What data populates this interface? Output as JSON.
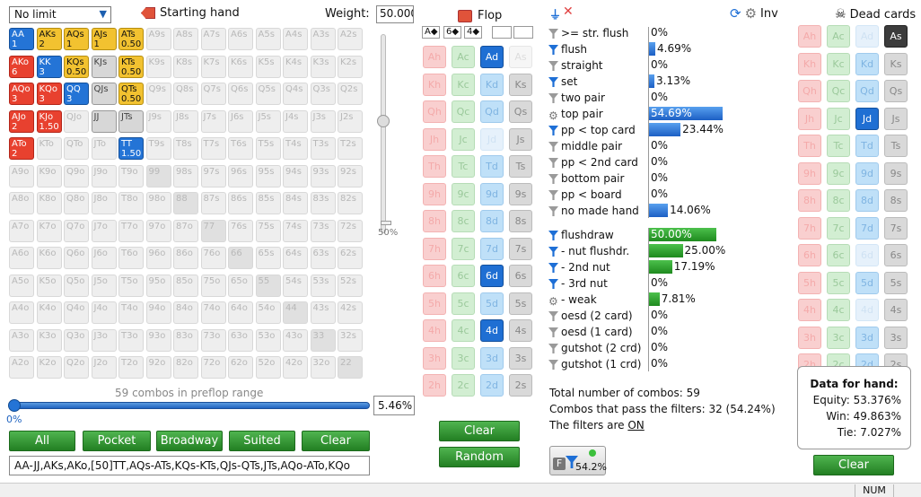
{
  "toolbar": {
    "limit_value": "No limit",
    "starting_hand_label": "Starting hand",
    "weight_label": "Weight:",
    "weight_value": "50.000"
  },
  "grid": {
    "combos_text": "59 combos in preflop range",
    "percent_value": "5.46%",
    "slider_label": "0%",
    "weight_tick_label": "50%",
    "rows": [
      [
        "AA",
        "AKs",
        "AQs",
        "AJs",
        "ATs",
        "A9s",
        "A8s",
        "A7s",
        "A6s",
        "A5s",
        "A4s",
        "A3s",
        "A2s"
      ],
      [
        "AKo",
        "KK",
        "KQs",
        "KJs",
        "KTs",
        "K9s",
        "K8s",
        "K7s",
        "K6s",
        "K5s",
        "K4s",
        "K3s",
        "K2s"
      ],
      [
        "AQo",
        "KQo",
        "QQ",
        "QJs",
        "QTs",
        "Q9s",
        "Q8s",
        "Q7s",
        "Q6s",
        "Q5s",
        "Q4s",
        "Q3s",
        "Q2s"
      ],
      [
        "AJo",
        "KJo",
        "QJo",
        "JJ",
        "JTs",
        "J9s",
        "J8s",
        "J7s",
        "J6s",
        "J5s",
        "J4s",
        "J3s",
        "J2s"
      ],
      [
        "ATo",
        "KTo",
        "QTo",
        "JTo",
        "TT",
        "T9s",
        "T8s",
        "T7s",
        "T6s",
        "T5s",
        "T4s",
        "T3s",
        "T2s"
      ],
      [
        "A9o",
        "K9o",
        "Q9o",
        "J9o",
        "T9o",
        "99",
        "98s",
        "97s",
        "96s",
        "95s",
        "94s",
        "93s",
        "92s"
      ],
      [
        "A8o",
        "K8o",
        "Q8o",
        "J8o",
        "T8o",
        "98o",
        "88",
        "87s",
        "86s",
        "85s",
        "84s",
        "83s",
        "82s"
      ],
      [
        "A7o",
        "K7o",
        "Q7o",
        "J7o",
        "T7o",
        "97o",
        "87o",
        "77",
        "76s",
        "75s",
        "74s",
        "73s",
        "72s"
      ],
      [
        "A6o",
        "K6o",
        "Q6o",
        "J6o",
        "T6o",
        "96o",
        "86o",
        "76o",
        "66",
        "65s",
        "64s",
        "63s",
        "62s"
      ],
      [
        "A5o",
        "K5o",
        "Q5o",
        "J5o",
        "T5o",
        "95o",
        "85o",
        "75o",
        "65o",
        "55",
        "54s",
        "53s",
        "52s"
      ],
      [
        "A4o",
        "K4o",
        "Q4o",
        "J4o",
        "T4o",
        "94o",
        "84o",
        "74o",
        "64o",
        "54o",
        "44",
        "43s",
        "42s"
      ],
      [
        "A3o",
        "K3o",
        "Q3o",
        "J3o",
        "T3o",
        "93o",
        "83o",
        "73o",
        "63o",
        "53o",
        "43o",
        "33",
        "32s"
      ],
      [
        "A2o",
        "K2o",
        "Q2o",
        "J2o",
        "T2o",
        "92o",
        "82o",
        "72o",
        "62o",
        "52o",
        "42o",
        "32o",
        "22"
      ]
    ],
    "highlights": {
      "0-0": {
        "color": "blue",
        "w": "1"
      },
      "0-1": {
        "color": "yellow",
        "w": "2"
      },
      "0-2": {
        "color": "yellow",
        "w": "1"
      },
      "0-3": {
        "color": "yellow",
        "w": "1"
      },
      "0-4": {
        "color": "yellow",
        "w": "0.50"
      },
      "1-0": {
        "color": "red",
        "w": "6"
      },
      "1-1": {
        "color": "blue",
        "w": "3"
      },
      "1-2": {
        "color": "yellow",
        "w": "0.50"
      },
      "1-3": {
        "color": "gray",
        "w": ""
      },
      "1-4": {
        "color": "yellow",
        "w": "0.50"
      },
      "2-0": {
        "color": "red",
        "w": "3"
      },
      "2-1": {
        "color": "red",
        "w": "3"
      },
      "2-2": {
        "color": "blue",
        "w": "3"
      },
      "2-3": {
        "color": "gray",
        "w": ""
      },
      "2-4": {
        "color": "yellow",
        "w": "0.50"
      },
      "3-0": {
        "color": "red",
        "w": "2"
      },
      "3-1": {
        "color": "red",
        "w": "1.50"
      },
      "3-3": {
        "color": "gray",
        "w": ""
      },
      "3-4": {
        "color": "gray",
        "w": ""
      },
      "4-0": {
        "color": "red",
        "w": "2"
      },
      "4-4": {
        "color": "blue",
        "w": "1.50"
      }
    },
    "dark_cells": [
      "5-5",
      "6-6",
      "7-7",
      "8-8",
      "9-9",
      "10-10",
      "11-11",
      "12-12",
      "3-3"
    ]
  },
  "buttons": {
    "all": "All",
    "pocket": "Pocket",
    "broadway": "Broadway",
    "suited": "Suited",
    "clear": "Clear"
  },
  "range_text": "AA-JJ,AKs,AKo,[50]TT,AQs-ATs,KQs-KTs,QJs-QTs,JTs,AQo-ATo,KQo",
  "flop": {
    "title": "Flop",
    "slots": [
      "A◆",
      "6◆",
      "4◆",
      "",
      ""
    ],
    "clear": "Clear",
    "random": "Random",
    "ranks": [
      "A",
      "K",
      "Q",
      "J",
      "T",
      "9",
      "8",
      "7",
      "6",
      "5",
      "4",
      "3",
      "2"
    ],
    "selected": [
      "Ad",
      "6d",
      "4d"
    ],
    "dim": [
      "As",
      "Jd"
    ]
  },
  "filters": {
    "items": [
      {
        "label": ">= str. flush",
        "pct": "0%",
        "bar": 0,
        "icon": "filter"
      },
      {
        "label": "flush",
        "pct": "4.69%",
        "bar": 4.69,
        "icon": "filter-on"
      },
      {
        "label": "straight",
        "pct": "0%",
        "bar": 0,
        "icon": "filter"
      },
      {
        "label": "set",
        "pct": "3.13%",
        "bar": 3.13,
        "icon": "filter-on"
      },
      {
        "label": "two pair",
        "pct": "0%",
        "bar": 0,
        "icon": "filter"
      },
      {
        "label": "top pair",
        "pct": "54.69%",
        "bar": 54.69,
        "icon": "gear"
      },
      {
        "label": "pp < top card",
        "pct": "23.44%",
        "bar": 23.44,
        "icon": "filter-on"
      },
      {
        "label": "middle pair",
        "pct": "0%",
        "bar": 0,
        "icon": "filter"
      },
      {
        "label": "pp < 2nd card",
        "pct": "0%",
        "bar": 0,
        "icon": "filter"
      },
      {
        "label": "bottom pair",
        "pct": "0%",
        "bar": 0,
        "icon": "filter"
      },
      {
        "label": "pp < board",
        "pct": "0%",
        "bar": 0,
        "icon": "filter"
      },
      {
        "label": "no made hand",
        "pct": "14.06%",
        "bar": 14.06,
        "icon": "filter"
      }
    ],
    "draws": [
      {
        "label": "flushdraw",
        "pct": "50.00%",
        "bar": 50,
        "icon": "filter-on"
      },
      {
        "label": "- nut flushdr.",
        "pct": "25.00%",
        "bar": 25,
        "icon": "filter-on"
      },
      {
        "label": "- 2nd nut",
        "pct": "17.19%",
        "bar": 17.19,
        "icon": "filter-on"
      },
      {
        "label": "- 3rd nut",
        "pct": "0%",
        "bar": 0,
        "icon": "filter-on"
      },
      {
        "label": "- weak",
        "pct": "7.81%",
        "bar": 7.81,
        "icon": "gear"
      },
      {
        "label": "oesd (2 card)",
        "pct": "0%",
        "bar": 0,
        "icon": "filter"
      },
      {
        "label": "oesd (1 card)",
        "pct": "0%",
        "bar": 0,
        "icon": "filter"
      },
      {
        "label": "gutshot (2 crd)",
        "pct": "0%",
        "bar": 0,
        "icon": "filter"
      },
      {
        "label": "gutshot (1 crd)",
        "pct": "0%",
        "bar": 0,
        "icon": "filter"
      }
    ],
    "total_combos": "Total number of combos: 59",
    "pass_combos": "Combos that pass the filters: 32 (54.24%)",
    "filters_on_prefix": "The filters are ",
    "filters_on_value": "ON",
    "filter_button_pct": "54.2%",
    "filter_button_letter": "F"
  },
  "right": {
    "inv_label": "Inv",
    "dead_cards_label": "Dead cards",
    "clear": "Clear",
    "selected": [
      "As",
      "Jd"
    ],
    "dim": [
      "Ad",
      "6d",
      "4d"
    ],
    "hand_data": {
      "title": "Data for hand:",
      "equity": "Equity: 53.376%",
      "win": "Win: 49.863%",
      "tie": "Tie: 7.027%"
    }
  },
  "status": {
    "num": "NUM"
  }
}
